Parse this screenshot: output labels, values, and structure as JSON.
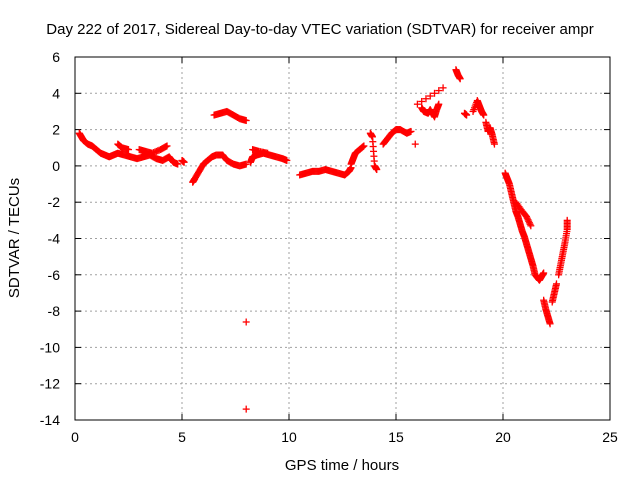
{
  "chart_data": {
    "type": "scatter",
    "title": "Day 222 of 2017, Sidereal Day-to-day VTEC variation (SDTVAR) for receiver ampr",
    "xlabel": "GPS time / hours",
    "ylabel": "SDTVAR / TECUs",
    "xlim": [
      0,
      25
    ],
    "ylim": [
      -14,
      6
    ],
    "xticks": [
      0,
      5,
      10,
      15,
      20,
      25
    ],
    "yticks": [
      -14,
      -12,
      -10,
      -8,
      -6,
      -4,
      -2,
      0,
      2,
      4,
      6
    ],
    "grid": true,
    "marker": "+",
    "color": "#ff0000",
    "series": [
      {
        "name": "SDTVAR",
        "segments": [
          [
            [
              0.2,
              1.8
            ],
            [
              0.3,
              1.6
            ],
            [
              0.4,
              1.4
            ],
            [
              0.6,
              1.2
            ],
            [
              0.8,
              1.1
            ],
            [
              1.0,
              0.9
            ],
            [
              1.2,
              0.7
            ],
            [
              1.4,
              0.6
            ],
            [
              1.6,
              0.5
            ],
            [
              1.8,
              0.6
            ],
            [
              2.0,
              0.7
            ],
            [
              2.3,
              0.6
            ],
            [
              2.6,
              0.5
            ],
            [
              2.9,
              0.4
            ],
            [
              3.2,
              0.5
            ],
            [
              3.5,
              0.6
            ],
            [
              3.8,
              0.4
            ],
            [
              4.1,
              0.3
            ],
            [
              4.4,
              0.5
            ],
            [
              4.6,
              0.2
            ],
            [
              4.8,
              0.1
            ]
          ],
          [
            [
              2.0,
              1.2
            ],
            [
              2.2,
              1.0
            ],
            [
              2.5,
              0.9
            ]
          ],
          [
            [
              3.0,
              0.9
            ],
            [
              3.3,
              0.8
            ],
            [
              3.6,
              0.7
            ],
            [
              4.0,
              0.9
            ],
            [
              4.3,
              1.1
            ]
          ],
          [
            [
              5.0,
              0.3
            ],
            [
              5.1,
              0.2
            ]
          ],
          [
            [
              5.5,
              -0.9
            ],
            [
              5.6,
              -0.7
            ],
            [
              5.8,
              -0.3
            ],
            [
              6.0,
              0.1
            ],
            [
              6.2,
              0.3
            ],
            [
              6.4,
              0.5
            ],
            [
              6.6,
              0.6
            ],
            [
              6.9,
              0.6
            ],
            [
              7.1,
              0.3
            ],
            [
              7.4,
              0.1
            ],
            [
              7.7,
              0.0
            ],
            [
              8.0,
              0.1
            ]
          ],
          [
            [
              6.5,
              2.8
            ],
            [
              6.8,
              2.9
            ],
            [
              7.1,
              3.0
            ],
            [
              7.4,
              2.8
            ],
            [
              7.7,
              2.6
            ],
            [
              8.0,
              2.5
            ]
          ],
          [
            [
              8.0,
              -8.6
            ]
          ],
          [
            [
              8.0,
              -13.4
            ]
          ],
          [
            [
              8.2,
              0.2
            ],
            [
              8.3,
              0.5
            ],
            [
              8.5,
              0.6
            ],
            [
              8.8,
              0.7
            ],
            [
              9.1,
              0.6
            ],
            [
              9.4,
              0.5
            ],
            [
              9.7,
              0.4
            ],
            [
              9.9,
              0.3
            ]
          ],
          [
            [
              8.3,
              0.9
            ],
            [
              8.6,
              0.8
            ],
            [
              9.0,
              0.7
            ]
          ],
          [
            [
              10.5,
              -0.5
            ],
            [
              10.8,
              -0.4
            ],
            [
              11.1,
              -0.3
            ],
            [
              11.4,
              -0.3
            ],
            [
              11.7,
              -0.2
            ],
            [
              12.0,
              -0.3
            ],
            [
              12.3,
              -0.4
            ],
            [
              12.6,
              -0.5
            ],
            [
              12.8,
              -0.3
            ],
            [
              12.9,
              -0.1
            ]
          ],
          [
            [
              12.9,
              0.1
            ],
            [
              13.0,
              0.4
            ],
            [
              13.1,
              0.7
            ],
            [
              13.3,
              0.9
            ],
            [
              13.5,
              1.1
            ]
          ],
          [
            [
              13.8,
              1.8
            ],
            [
              13.9,
              1.6
            ],
            [
              14.0,
              0.0
            ],
            [
              14.1,
              -0.2
            ]
          ],
          [
            [
              14.4,
              1.2
            ],
            [
              14.6,
              1.5
            ],
            [
              14.8,
              1.8
            ],
            [
              15.0,
              2.0
            ],
            [
              15.2,
              2.0
            ],
            [
              15.5,
              1.8
            ],
            [
              15.7,
              1.9
            ]
          ],
          [
            [
              15.9,
              1.2
            ]
          ],
          [
            [
              16.2,
              3.2
            ],
            [
              16.3,
              3.0
            ],
            [
              16.5,
              2.9
            ],
            [
              16.6,
              3.1
            ],
            [
              16.8,
              2.7
            ],
            [
              16.9,
              3.1
            ],
            [
              17.0,
              3.4
            ]
          ],
          [
            [
              16.0,
              3.4
            ],
            [
              17.2,
              4.3
            ]
          ],
          [
            [
              17.8,
              5.3
            ],
            [
              17.9,
              5.0
            ],
            [
              18.0,
              4.8
            ]
          ],
          [
            [
              18.2,
              2.9
            ],
            [
              18.3,
              2.8
            ]
          ],
          [
            [
              18.6,
              3.0
            ],
            [
              18.8,
              3.6
            ],
            [
              18.9,
              3.3
            ],
            [
              19.0,
              3.0
            ],
            [
              19.1,
              2.8
            ]
          ],
          [
            [
              19.2,
              2.4
            ],
            [
              19.3,
              1.9
            ],
            [
              19.4,
              2.1
            ],
            [
              19.5,
              1.7
            ],
            [
              19.6,
              1.2
            ]
          ],
          [
            [
              20.1,
              -0.4
            ],
            [
              20.2,
              -0.7
            ],
            [
              20.3,
              -1.0
            ],
            [
              20.4,
              -1.5
            ],
            [
              20.5,
              -2.0
            ],
            [
              20.6,
              -2.5
            ],
            [
              20.7,
              -2.8
            ],
            [
              20.8,
              -3.2
            ],
            [
              20.9,
              -3.6
            ],
            [
              21.0,
              -3.9
            ],
            [
              21.1,
              -4.3
            ],
            [
              21.2,
              -4.7
            ],
            [
              21.3,
              -5.1
            ],
            [
              21.4,
              -5.5
            ],
            [
              21.5,
              -6.0
            ],
            [
              21.7,
              -6.3
            ],
            [
              21.8,
              -6.1
            ],
            [
              21.9,
              -5.9
            ]
          ],
          [
            [
              20.6,
              -2.0
            ],
            [
              20.9,
              -2.5
            ],
            [
              21.1,
              -2.8
            ],
            [
              21.3,
              -3.3
            ]
          ],
          [
            [
              21.9,
              -7.4
            ],
            [
              22.0,
              -7.9
            ],
            [
              22.1,
              -8.3
            ],
            [
              22.2,
              -8.7
            ]
          ],
          [
            [
              22.3,
              -7.5
            ],
            [
              22.4,
              -7.0
            ],
            [
              22.5,
              -6.5
            ]
          ],
          [
            [
              22.6,
              -6.0
            ],
            [
              22.7,
              -5.4
            ],
            [
              22.8,
              -4.8
            ],
            [
              22.9,
              -4.2
            ],
            [
              23.0,
              -3.5
            ],
            [
              23.0,
              -3.0
            ]
          ]
        ]
      }
    ]
  }
}
